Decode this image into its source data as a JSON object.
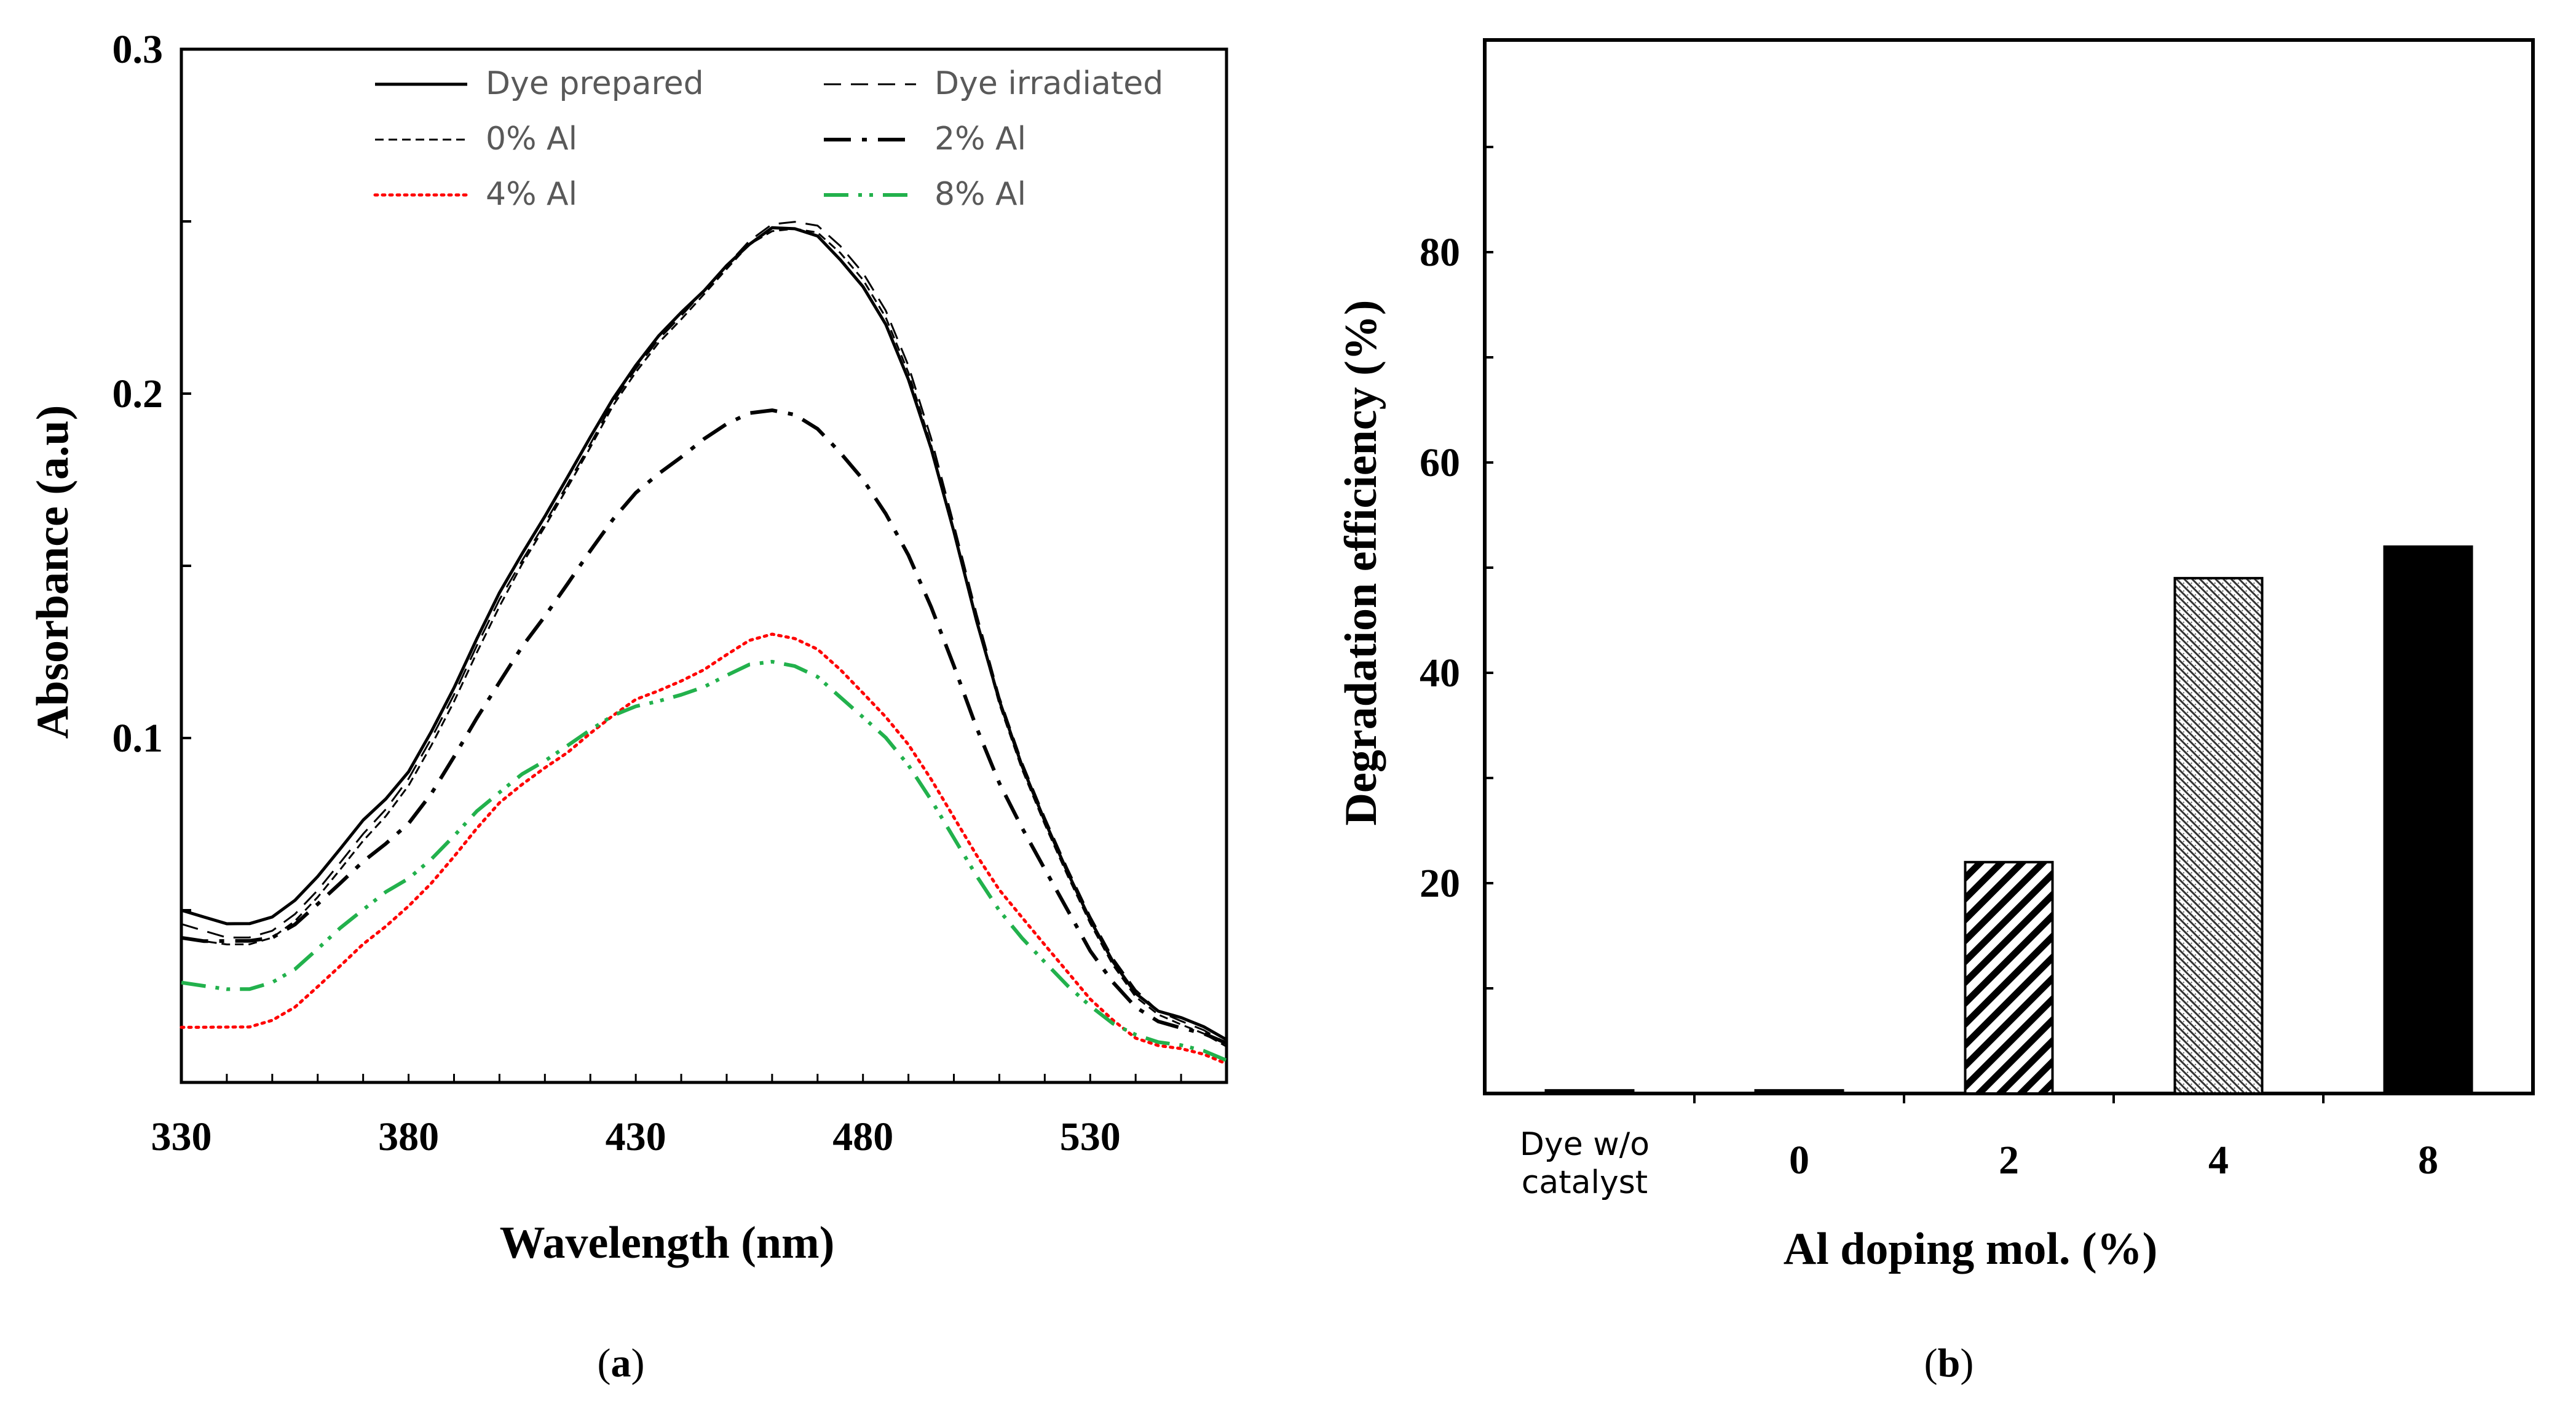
{
  "chart_data": [
    {
      "type": "line",
      "panel_label": "a",
      "xlabel": "Wavelength (nm)",
      "ylabel": "Absorbance (a.u)",
      "xlim": [
        330,
        560
      ],
      "ylim": [
        0,
        0.3
      ],
      "x_ticks": [
        "330",
        "380",
        "430",
        "480",
        "530"
      ],
      "y_ticks": [
        "0.1",
        "0.2",
        "0.3"
      ],
      "legend_position": "top",
      "series": [
        {
          "name": "Dye prepared",
          "color": "#000000",
          "style": "solid",
          "width": 5,
          "x": [
            330,
            335,
            340,
            345,
            350,
            355,
            360,
            365,
            370,
            375,
            380,
            385,
            390,
            395,
            400,
            405,
            410,
            415,
            420,
            425,
            430,
            435,
            440,
            445,
            450,
            455,
            460,
            465,
            470,
            475,
            480,
            485,
            490,
            495,
            500,
            505,
            510,
            515,
            520,
            525,
            530,
            535,
            540,
            545,
            550,
            555,
            560
          ],
          "y": [
            0.05,
            0.047,
            0.045,
            0.046,
            0.049,
            0.054,
            0.06,
            0.067,
            0.075,
            0.082,
            0.091,
            0.103,
            0.115,
            0.128,
            0.141,
            0.153,
            0.165,
            0.177,
            0.188,
            0.198,
            0.207,
            0.216,
            0.224,
            0.231,
            0.238,
            0.243,
            0.247,
            0.247,
            0.246,
            0.24,
            0.232,
            0.22,
            0.203,
            0.183,
            0.16,
            0.135,
            0.112,
            0.092,
            0.075,
            0.06,
            0.047,
            0.036,
            0.027,
            0.021,
            0.018,
            0.015,
            0.012
          ]
        },
        {
          "name": "Dye irradiated",
          "color": "#000000",
          "style": "dashed",
          "width": 3,
          "x": [
            330,
            335,
            340,
            345,
            350,
            355,
            360,
            365,
            370,
            375,
            380,
            385,
            390,
            395,
            400,
            405,
            410,
            415,
            420,
            425,
            430,
            435,
            440,
            445,
            450,
            455,
            460,
            465,
            470,
            475,
            480,
            485,
            490,
            495,
            500,
            505,
            510,
            515,
            520,
            525,
            530,
            535,
            540,
            545,
            550,
            555,
            560
          ],
          "y": [
            0.046,
            0.043,
            0.041,
            0.042,
            0.045,
            0.05,
            0.056,
            0.063,
            0.071,
            0.079,
            0.089,
            0.101,
            0.113,
            0.126,
            0.139,
            0.151,
            0.163,
            0.175,
            0.186,
            0.197,
            0.206,
            0.215,
            0.223,
            0.231,
            0.238,
            0.244,
            0.248,
            0.249,
            0.249,
            0.244,
            0.236,
            0.224,
            0.207,
            0.186,
            0.162,
            0.137,
            0.113,
            0.093,
            0.076,
            0.061,
            0.048,
            0.037,
            0.028,
            0.021,
            0.017,
            0.014,
            0.011
          ]
        },
        {
          "name": "0% Al",
          "color": "#000000",
          "style": "shortdash",
          "width": 3,
          "x": [
            330,
            335,
            340,
            345,
            350,
            355,
            360,
            365,
            370,
            375,
            380,
            385,
            390,
            395,
            400,
            405,
            410,
            415,
            420,
            425,
            430,
            435,
            440,
            445,
            450,
            455,
            460,
            465,
            470,
            475,
            480,
            485,
            490,
            495,
            500,
            505,
            510,
            515,
            520,
            525,
            530,
            535,
            540,
            545,
            550,
            555,
            560
          ],
          "y": [
            0.042,
            0.04,
            0.039,
            0.04,
            0.043,
            0.048,
            0.054,
            0.061,
            0.069,
            0.077,
            0.087,
            0.099,
            0.111,
            0.124,
            0.137,
            0.15,
            0.162,
            0.174,
            0.185,
            0.196,
            0.205,
            0.214,
            0.222,
            0.23,
            0.237,
            0.243,
            0.246,
            0.247,
            0.247,
            0.242,
            0.234,
            0.222,
            0.205,
            0.184,
            0.16,
            0.135,
            0.111,
            0.091,
            0.074,
            0.059,
            0.046,
            0.035,
            0.026,
            0.02,
            0.016,
            0.013,
            0.01
          ]
        },
        {
          "name": "2% Al",
          "color": "#000000",
          "style": "dashdot",
          "width": 6,
          "x": [
            330,
            335,
            340,
            345,
            350,
            355,
            360,
            365,
            370,
            375,
            380,
            385,
            390,
            395,
            400,
            405,
            410,
            415,
            420,
            425,
            430,
            435,
            440,
            445,
            450,
            455,
            460,
            465,
            470,
            475,
            480,
            485,
            490,
            495,
            500,
            505,
            510,
            515,
            520,
            525,
            530,
            535,
            540,
            545,
            550,
            555,
            560
          ],
          "y": [
            0.042,
            0.04,
            0.04,
            0.041,
            0.043,
            0.047,
            0.052,
            0.057,
            0.063,
            0.069,
            0.076,
            0.085,
            0.095,
            0.105,
            0.115,
            0.126,
            0.136,
            0.146,
            0.155,
            0.163,
            0.17,
            0.176,
            0.182,
            0.188,
            0.192,
            0.194,
            0.194,
            0.193,
            0.19,
            0.184,
            0.176,
            0.165,
            0.152,
            0.137,
            0.121,
            0.104,
            0.088,
            0.074,
            0.061,
            0.049,
            0.038,
            0.03,
            0.023,
            0.018,
            0.015,
            0.013,
            0.011
          ]
        },
        {
          "name": "4% Al",
          "color": "#ff0000",
          "style": "dotted",
          "width": 5,
          "x": [
            330,
            335,
            340,
            345,
            350,
            355,
            360,
            365,
            370,
            375,
            380,
            385,
            390,
            395,
            400,
            405,
            410,
            415,
            420,
            425,
            430,
            435,
            440,
            445,
            450,
            455,
            460,
            465,
            470,
            475,
            480,
            485,
            490,
            495,
            500,
            505,
            510,
            515,
            520,
            525,
            530,
            535,
            540,
            545,
            550,
            555,
            560
          ],
          "y": [
            0.016,
            0.015,
            0.015,
            0.016,
            0.019,
            0.023,
            0.028,
            0.033,
            0.039,
            0.045,
            0.052,
            0.059,
            0.066,
            0.073,
            0.08,
            0.086,
            0.092,
            0.097,
            0.102,
            0.106,
            0.11,
            0.113,
            0.117,
            0.121,
            0.125,
            0.128,
            0.129,
            0.128,
            0.126,
            0.121,
            0.114,
            0.106,
            0.097,
            0.087,
            0.077,
            0.067,
            0.057,
            0.048,
            0.039,
            0.031,
            0.024,
            0.019,
            0.014,
            0.011,
            0.009,
            0.007,
            0.005
          ]
        },
        {
          "name": "8% Al",
          "color": "#22b14c",
          "style": "dashdotdot",
          "width": 6,
          "x": [
            330,
            335,
            340,
            345,
            350,
            355,
            360,
            365,
            370,
            375,
            380,
            385,
            390,
            395,
            400,
            405,
            410,
            415,
            420,
            425,
            430,
            435,
            440,
            445,
            450,
            455,
            460,
            465,
            470,
            475,
            480,
            485,
            490,
            495,
            500,
            505,
            510,
            515,
            520,
            525,
            530,
            535,
            540,
            545,
            550,
            555,
            560
          ],
          "y": [
            0.029,
            0.027,
            0.026,
            0.027,
            0.03,
            0.034,
            0.039,
            0.044,
            0.049,
            0.055,
            0.06,
            0.066,
            0.072,
            0.078,
            0.083,
            0.089,
            0.094,
            0.099,
            0.103,
            0.106,
            0.108,
            0.11,
            0.113,
            0.116,
            0.119,
            0.121,
            0.121,
            0.12,
            0.118,
            0.113,
            0.107,
            0.1,
            0.091,
            0.081,
            0.071,
            0.061,
            0.051,
            0.042,
            0.034,
            0.027,
            0.022,
            0.018,
            0.015,
            0.012,
            0.01,
            0.008,
            0.006
          ]
        }
      ]
    },
    {
      "type": "bar",
      "panel_label": "b",
      "xlabel": "Al doping mol. (%)",
      "ylabel": "Degradation efficiency (%)",
      "ylim": [
        0,
        100
      ],
      "y_ticks": [
        "20",
        "40",
        "60",
        "80"
      ],
      "categories": [
        "Dye w/o catalyst",
        "0",
        "2",
        "4",
        "8"
      ],
      "category_lines": [
        [
          "Dye w/o",
          "catalyst"
        ],
        [
          "0"
        ],
        [
          "2"
        ],
        [
          "4"
        ],
        [
          "8"
        ]
      ],
      "values": [
        0.3,
        0.3,
        22,
        49,
        52
      ],
      "fills": [
        "solid",
        "solid",
        "diagonal-hatch",
        "fine-hatch",
        "solid"
      ]
    }
  ]
}
